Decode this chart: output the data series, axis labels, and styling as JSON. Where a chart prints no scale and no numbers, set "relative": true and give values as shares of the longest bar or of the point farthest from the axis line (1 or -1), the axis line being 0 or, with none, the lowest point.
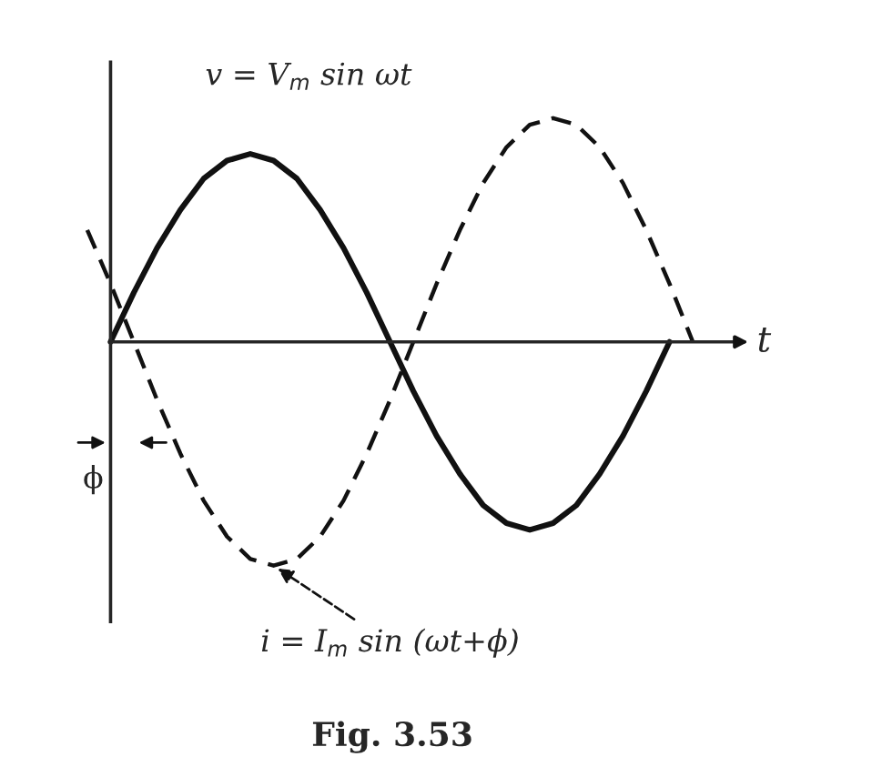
{
  "chart_data": {
    "type": "line",
    "relative": true,
    "xlabel": "t",
    "grid": false,
    "legend": false,
    "marker": "none",
    "categories": [
      null,
      null,
      null,
      null,
      null,
      null,
      null,
      null,
      null,
      null,
      null,
      null,
      null,
      null,
      null,
      null,
      null,
      null,
      null,
      null,
      null,
      null,
      null,
      null,
      null,
      null,
      null,
      null,
      null
    ],
    "series": [
      {
        "color": "#111111",
        "line_style": "solid",
        "values": [
          null,
          null,
          0,
          0.22,
          0.42,
          0.59,
          0.73,
          0.81,
          0.84,
          0.81,
          0.73,
          0.59,
          0.42,
          0.22,
          0,
          -0.22,
          -0.42,
          -0.59,
          -0.73,
          -0.81,
          -0.84,
          -0.81,
          -0.73,
          -0.59,
          -0.42,
          -0.22,
          0,
          null,
          null
        ]
      },
      {
        "color": "#111111",
        "line_style": "dashed",
        "values": [
          null,
          0.5,
          0.26,
          0,
          -0.26,
          -0.5,
          -0.71,
          -0.87,
          -0.97,
          -1,
          -0.97,
          -0.87,
          -0.71,
          -0.5,
          -0.26,
          0,
          0.26,
          0.5,
          0.71,
          0.87,
          0.97,
          1,
          0.97,
          0.87,
          0.71,
          0.5,
          0.26,
          0,
          null
        ]
      }
    ],
    "annotations": [
      "v = V$_{m}$ sin ωt",
      "i = I$_{m}$ sin (ωt+ϕ)",
      "ϕ",
      "Fig. 3.53"
    ]
  }
}
